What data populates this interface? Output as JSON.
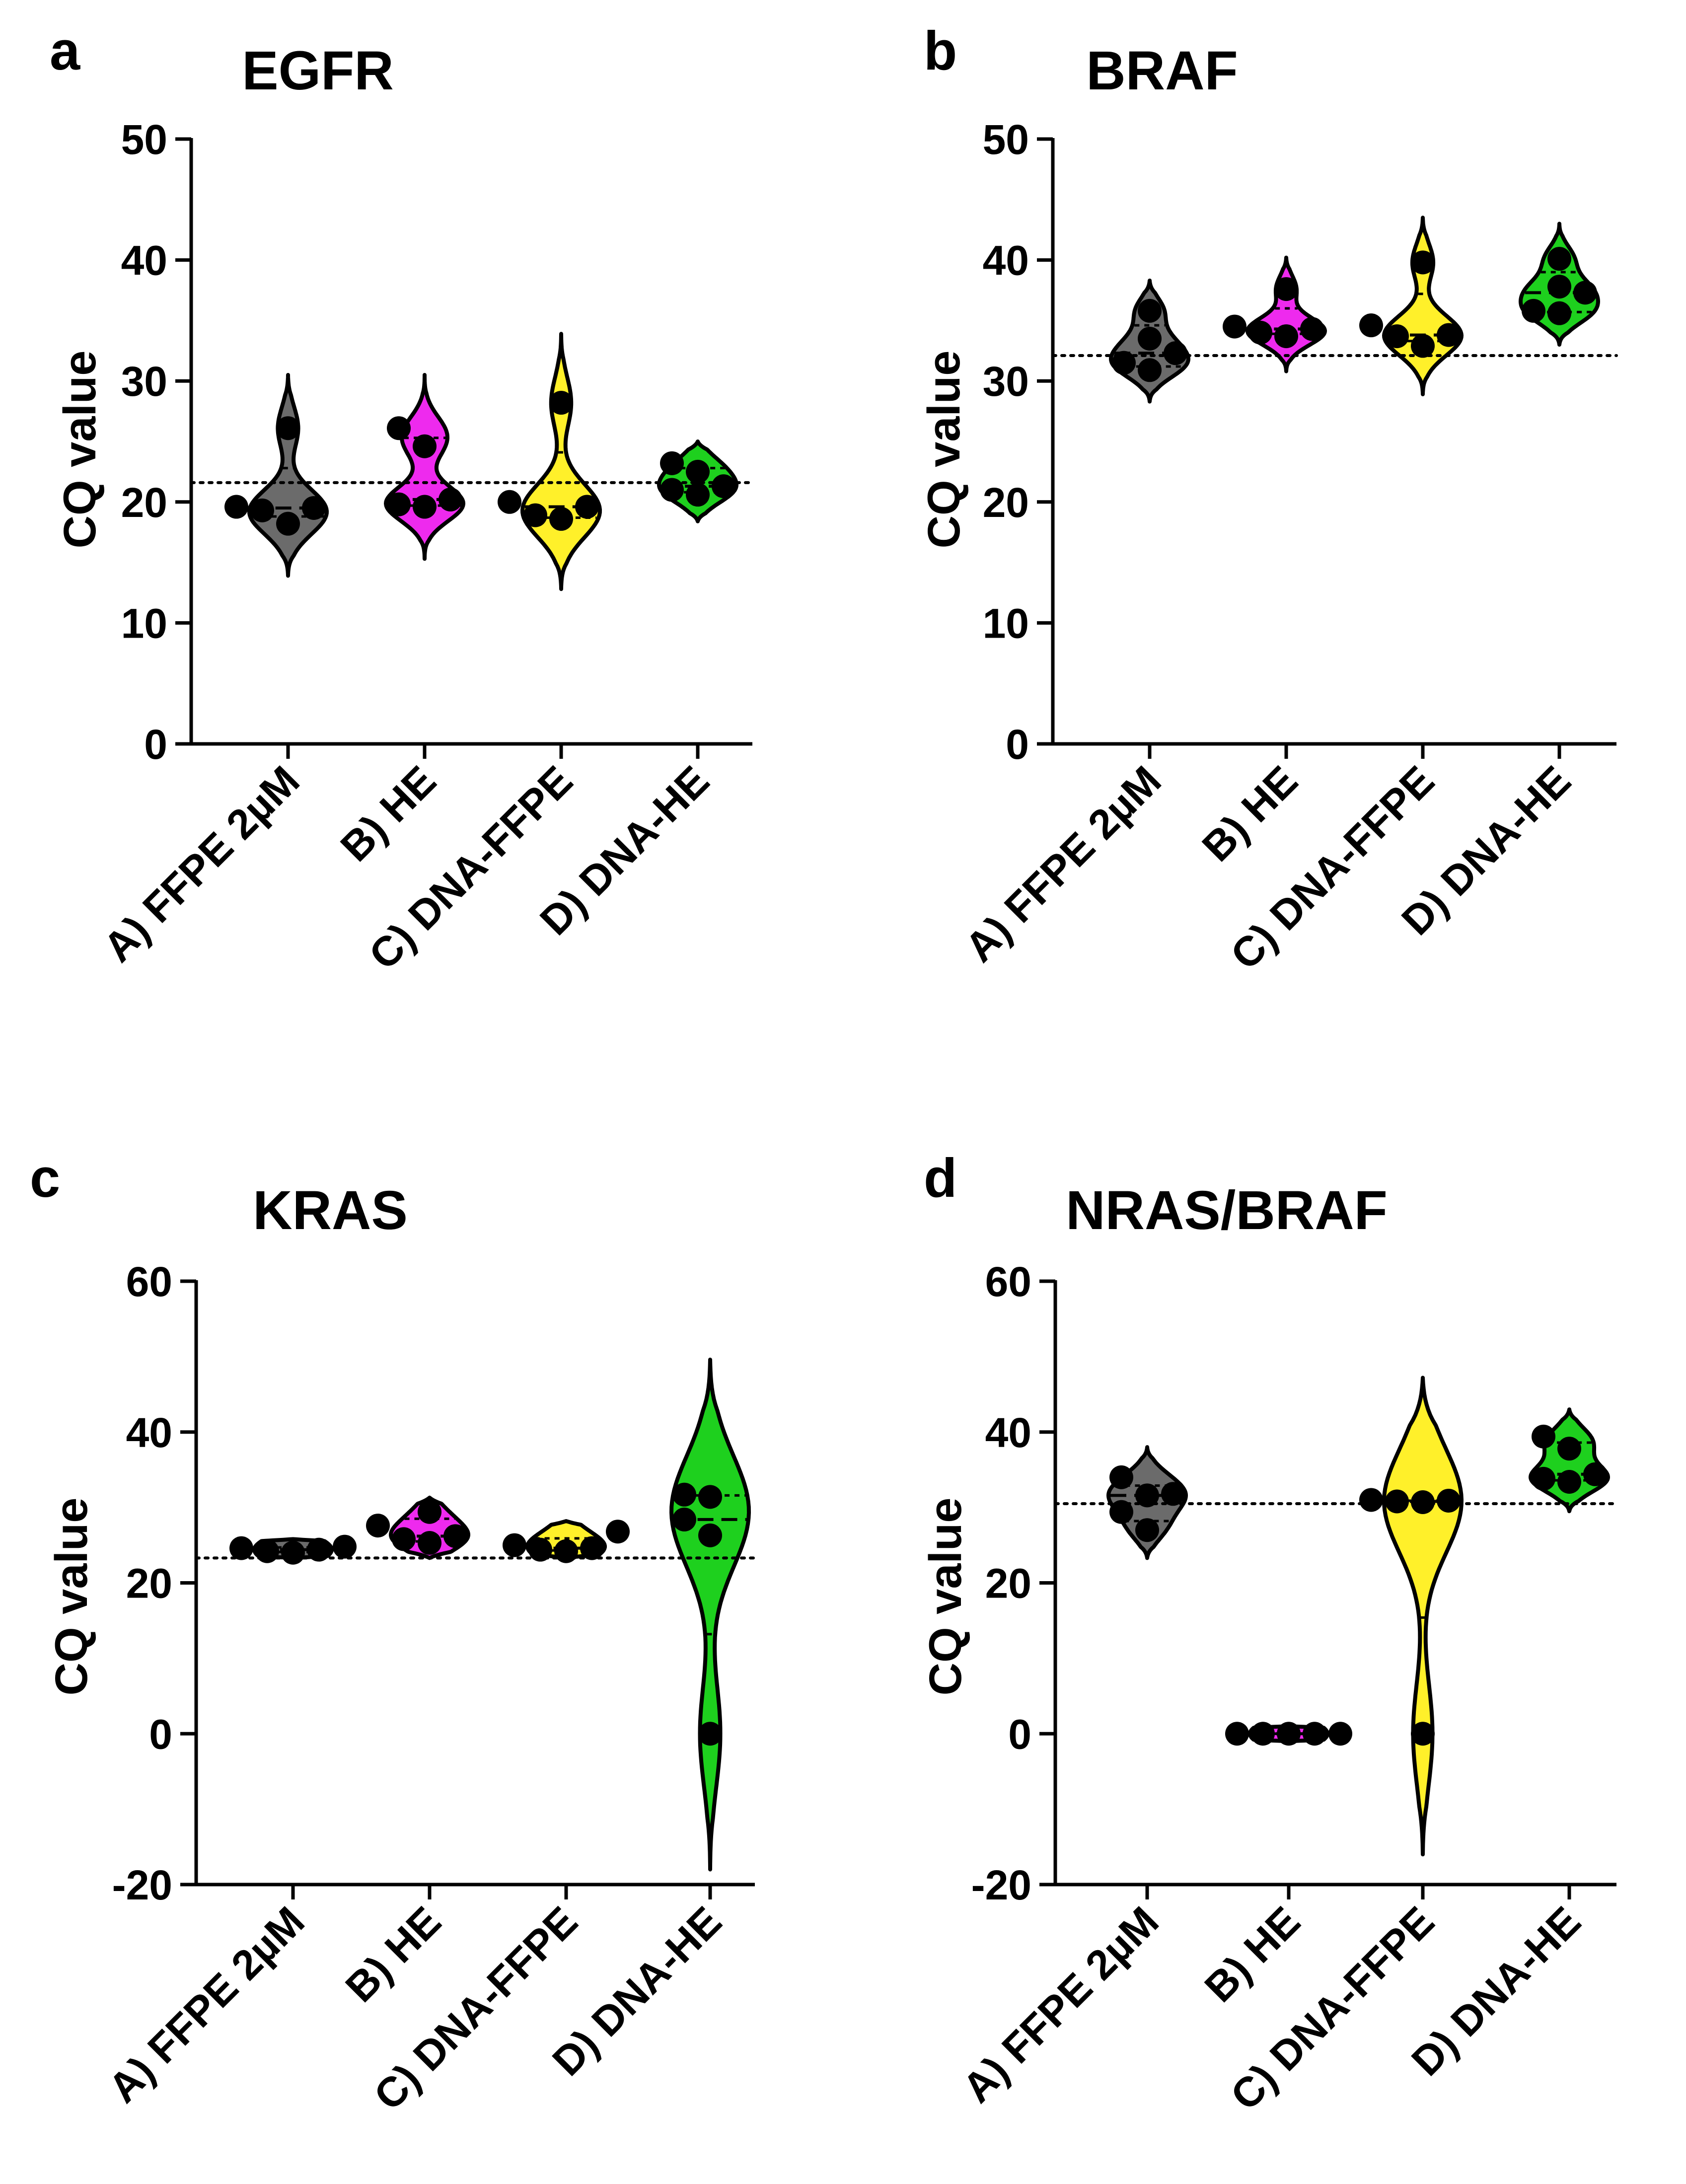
{
  "chart_data": [
    {
      "type": "violin",
      "panel_letter": "a",
      "title": "EGFR",
      "ylabel": "CQ value",
      "xlabel": "",
      "ylim": [
        0,
        50
      ],
      "yticks": [
        0,
        10,
        20,
        30,
        40,
        50
      ],
      "categories": [
        "A) FFPE 2µM",
        "B) HE",
        "C) DNA-FFPE",
        "D) DNA-HE"
      ],
      "colors": [
        "#6b6b6b",
        "#ee2aee",
        "#fff02a",
        "#1ed01e"
      ],
      "reference_line": 21.6,
      "series": [
        {
          "name": "A) FFPE 2µM",
          "values": [
            18.2,
            19.3,
            19.5,
            19.6,
            26.1
          ],
          "median": 19.5,
          "q1": 18.8,
          "q3": 22.8,
          "range": [
            13.9,
            30.5
          ]
        },
        {
          "name": "B) HE",
          "values": [
            19.6,
            19.8,
            20.2,
            24.6,
            26.1
          ],
          "median": 20.2,
          "q1": 19.7,
          "q3": 25.3,
          "range": [
            15.3,
            30.5
          ]
        },
        {
          "name": "C) DNA-FFPE",
          "values": [
            18.6,
            18.9,
            19.6,
            20.0,
            28.2
          ],
          "median": 19.6,
          "q1": 18.7,
          "q3": 24.1,
          "range": [
            12.8,
            33.9
          ]
        },
        {
          "name": "D) DNA-HE",
          "values": [
            20.6,
            21.0,
            21.3,
            22.5,
            23.2
          ],
          "median": 21.3,
          "q1": 20.8,
          "q3": 22.8,
          "range": [
            18.4,
            25.0
          ]
        }
      ]
    },
    {
      "type": "violin",
      "panel_letter": "b",
      "title": "BRAF",
      "ylabel": "CQ value",
      "xlabel": "",
      "ylim": [
        0,
        50
      ],
      "yticks": [
        0,
        10,
        20,
        30,
        40,
        50
      ],
      "categories": [
        "A) FFPE 2µM",
        "B) HE",
        "C) DNA-FFPE",
        "D) DNA-HE"
      ],
      "colors": [
        "#6b6b6b",
        "#ee2aee",
        "#fff02a",
        "#1ed01e"
      ],
      "reference_line": 32.1,
      "series": [
        {
          "name": "A) FFPE 2µM",
          "values": [
            30.9,
            31.5,
            32.3,
            33.5,
            35.8
          ],
          "median": 32.3,
          "q1": 31.2,
          "q3": 34.6,
          "range": [
            28.3,
            38.3
          ]
        },
        {
          "name": "B) HE",
          "values": [
            33.7,
            34.0,
            34.3,
            34.5,
            37.6
          ],
          "median": 34.3,
          "q1": 33.9,
          "q3": 36.0,
          "range": [
            30.8,
            40.2
          ]
        },
        {
          "name": "C) DNA-FFPE",
          "values": [
            32.9,
            33.7,
            33.8,
            34.6,
            39.8
          ],
          "median": 33.8,
          "q1": 33.3,
          "q3": 37.2,
          "range": [
            28.9,
            43.5
          ]
        },
        {
          "name": "D) DNA-HE",
          "values": [
            35.6,
            35.8,
            37.3,
            37.8,
            40.1
          ],
          "median": 37.3,
          "q1": 35.7,
          "q3": 39.0,
          "range": [
            33.0,
            43.0
          ]
        }
      ]
    },
    {
      "type": "violin",
      "panel_letter": "c",
      "title": "KRAS",
      "ylabel": "CQ value",
      "xlabel": "",
      "ylim": [
        -20,
        60
      ],
      "yticks": [
        -20,
        0,
        20,
        40,
        60
      ],
      "categories": [
        "A) FFPE 2µM",
        "B) HE",
        "C) DNA-FFPE",
        "D) DNA-HE"
      ],
      "colors": [
        "#6b6b6b",
        "#ee2aee",
        "#fff02a",
        "#1ed01e"
      ],
      "reference_line": 23.3,
      "series": [
        {
          "name": "A) FFPE 2µM",
          "values": [
            24.0,
            24.2,
            24.4,
            24.6,
            24.8
          ],
          "median": 24.4,
          "q1": 24.1,
          "q3": 24.7,
          "range": [
            23.3,
            25.8
          ]
        },
        {
          "name": "B) HE",
          "values": [
            25.3,
            25.8,
            26.2,
            27.6,
            29.4
          ],
          "median": 26.2,
          "q1": 25.5,
          "q3": 28.5,
          "range": [
            23.3,
            31.3
          ]
        },
        {
          "name": "C) DNA-FFPE",
          "values": [
            24.2,
            24.4,
            24.6,
            25.0,
            26.8
          ],
          "median": 24.6,
          "q1": 24.3,
          "q3": 25.9,
          "range": [
            23.3,
            28.2
          ]
        },
        {
          "name": "D) DNA-HE",
          "values": [
            0.0,
            26.3,
            28.4,
            31.4,
            31.7
          ],
          "median": 28.4,
          "q1": 13.2,
          "q3": 31.6,
          "range": [
            -18.0,
            49.6
          ]
        }
      ]
    },
    {
      "type": "violin",
      "panel_letter": "d",
      "title": "NRAS/BRAF",
      "ylabel": "CQ value",
      "xlabel": "",
      "ylim": [
        -20,
        60
      ],
      "yticks": [
        -20,
        0,
        20,
        40,
        60
      ],
      "categories": [
        "A) FFPE 2µM",
        "B) HE",
        "C) DNA-FFPE",
        "D) DNA-HE"
      ],
      "colors": [
        "#6b6b6b",
        "#ee2aee",
        "#fff02a",
        "#1ed01e"
      ],
      "reference_line": 30.5,
      "series": [
        {
          "name": "A) FFPE 2µM",
          "values": [
            27.0,
            29.4,
            31.6,
            31.8,
            34.0
          ],
          "median": 31.6,
          "q1": 28.2,
          "q3": 32.9,
          "range": [
            23.3,
            38.0
          ]
        },
        {
          "name": "B) HE",
          "values": [
            0.0,
            0.0,
            0.0,
            0.0,
            0.0
          ],
          "median": 0.0,
          "q1": 0.0,
          "q3": 0.0,
          "range": [
            -1.0,
            1.0
          ]
        },
        {
          "name": "C) DNA-FFPE",
          "values": [
            0.0,
            30.7,
            30.8,
            30.9,
            31.0
          ],
          "median": 30.8,
          "q1": 15.4,
          "q3": 30.9,
          "range": [
            -16.0,
            47.2
          ]
        },
        {
          "name": "D) DNA-HE",
          "values": [
            33.4,
            33.8,
            34.4,
            37.8,
            39.4
          ],
          "median": 34.4,
          "q1": 33.6,
          "q3": 38.6,
          "range": [
            29.5,
            43.0
          ]
        }
      ]
    }
  ]
}
